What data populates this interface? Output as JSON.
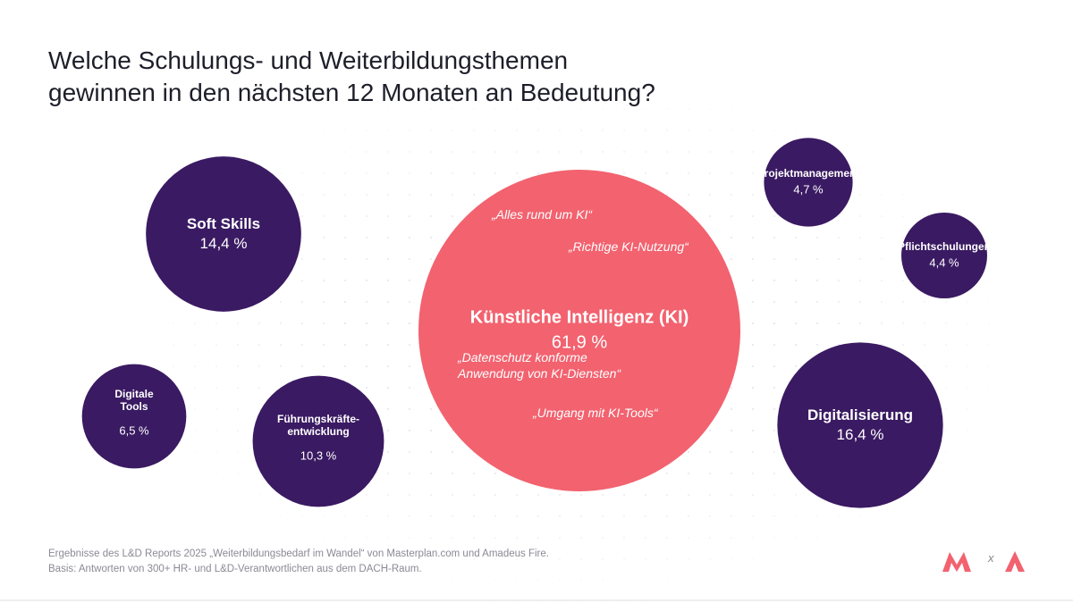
{
  "chart_data": {
    "type": "bubble",
    "title": "Welche Schulungs- und Weiterbildungsthemen\ngewinnen in den nächsten 12 Monaten an Bedeutung?",
    "categories": [
      "Künstliche Intelligenz (KI)",
      "Digitalisierung",
      "Soft Skills",
      "Führungskräfte-\nentwicklung",
      "Digitale\nTools",
      "Projektmanagement",
      "Pflichtschulungen"
    ],
    "values": [
      61.9,
      16.4,
      14.4,
      10.3,
      6.5,
      4.7,
      4.4
    ],
    "value_labels": [
      "61,9 %",
      "16,4 %",
      "14,4 %",
      "10,3 %",
      "6,5 %",
      "4,7 %",
      "4,4 %"
    ],
    "colors": [
      "#f2626f",
      "#3a1a62",
      "#3a1a62",
      "#3a1a62",
      "#3a1a62",
      "#3a1a62",
      "#3a1a62"
    ],
    "annotations": [
      "„Alles rund um KI“",
      "„Richtige KI-Nutzung“",
      "„Datenschutz konforme\nAnwendung von KI-Diensten“",
      "„Umgang mit KI-Tools“"
    ],
    "footnote": [
      "Ergebnisse des L&D Reports 2025 „Weiterbildungsbedarf im Wandel“ von Masterplan.com und Amadeus Fire.",
      "Basis: Antworten von 300+ HR- und L&D-Verantwortlichen aus dem DACH-Raum."
    ],
    "logo_separator": "x"
  }
}
